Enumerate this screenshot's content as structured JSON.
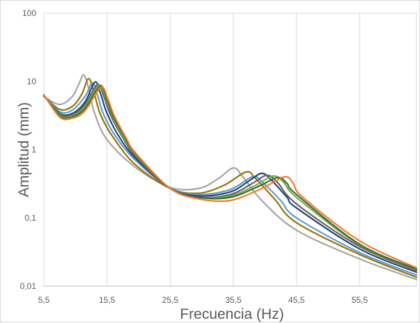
{
  "chart_data": {
    "type": "line",
    "title": "",
    "xlabel": "Frecuencia (Hz)",
    "ylabel": "Amplitud (mm)",
    "xlim": [
      5.5,
      64.5
    ],
    "ylim": [
      0.01,
      100
    ],
    "y_scale": "log",
    "grid": "vertical",
    "legend": "none",
    "x_ticks": [
      5.5,
      15.5,
      25.5,
      35.5,
      45.5,
      55.5
    ],
    "x_tick_labels": [
      "5,5",
      "15,5",
      "25,5",
      "35,5",
      "45,5",
      "55,5"
    ],
    "y_ticks": [
      0.01,
      0.1,
      1,
      10,
      100
    ],
    "y_tick_labels": [
      "0,01",
      "0,1",
      "1",
      "10",
      "100"
    ],
    "series": [
      {
        "color": "#a5a5a5",
        "values": [
          [
            5.5,
            6.0
          ],
          [
            8.0,
            4.6
          ],
          [
            10.0,
            6.0
          ],
          [
            11.0,
            9.0
          ],
          [
            11.8,
            12.5
          ],
          [
            12.5,
            8.5
          ],
          [
            13.5,
            3.5
          ],
          [
            15.5,
            1.4
          ],
          [
            20.0,
            0.55
          ],
          [
            25.5,
            0.28
          ],
          [
            30.0,
            0.27
          ],
          [
            33.0,
            0.37
          ],
          [
            35.5,
            0.54
          ],
          [
            37.0,
            0.4
          ],
          [
            40.0,
            0.18
          ],
          [
            45.5,
            0.066
          ],
          [
            55.5,
            0.025
          ],
          [
            64.5,
            0.0125
          ]
        ]
      },
      {
        "color": "#997300",
        "values": [
          [
            5.5,
            6.1
          ],
          [
            8.0,
            3.9
          ],
          [
            10.0,
            4.3
          ],
          [
            11.5,
            6.5
          ],
          [
            12.6,
            11.0
          ],
          [
            13.5,
            6.5
          ],
          [
            14.5,
            3.2
          ],
          [
            16.5,
            1.5
          ],
          [
            20.0,
            0.6
          ],
          [
            25.5,
            0.27
          ],
          [
            30.0,
            0.23
          ],
          [
            34.0,
            0.3
          ],
          [
            37.5,
            0.47
          ],
          [
            39.0,
            0.38
          ],
          [
            42.0,
            0.19
          ],
          [
            45.5,
            0.085
          ],
          [
            55.5,
            0.029
          ],
          [
            64.5,
            0.0135
          ]
        ]
      },
      {
        "color": "#5b9bd5",
        "values": [
          [
            5.5,
            6.2
          ],
          [
            8.0,
            3.6
          ],
          [
            10.0,
            3.8
          ],
          [
            12.0,
            6.0
          ],
          [
            13.2,
            9.5
          ],
          [
            14.0,
            6.2
          ],
          [
            15.0,
            3.2
          ],
          [
            17.0,
            1.5
          ],
          [
            20.0,
            0.7
          ],
          [
            25.5,
            0.27
          ],
          [
            30.0,
            0.22
          ],
          [
            35.0,
            0.26
          ],
          [
            38.5,
            0.4
          ],
          [
            40.0,
            0.34
          ],
          [
            43.0,
            0.18
          ],
          [
            45.5,
            0.1
          ],
          [
            55.5,
            0.031
          ],
          [
            64.5,
            0.0145
          ]
        ]
      },
      {
        "color": "#264478",
        "values": [
          [
            5.5,
            6.2
          ],
          [
            8.0,
            3.4
          ],
          [
            10.0,
            3.4
          ],
          [
            12.0,
            5.0
          ],
          [
            13.6,
            9.8
          ],
          [
            14.5,
            6.5
          ],
          [
            15.5,
            3.4
          ],
          [
            17.5,
            1.5
          ],
          [
            20.0,
            0.75
          ],
          [
            25.5,
            0.27
          ],
          [
            30.0,
            0.21
          ],
          [
            35.0,
            0.24
          ],
          [
            38.0,
            0.35
          ],
          [
            40.0,
            0.45
          ],
          [
            41.5,
            0.36
          ],
          [
            44.0,
            0.2
          ],
          [
            45.5,
            0.14
          ],
          [
            55.5,
            0.035
          ],
          [
            64.5,
            0.016
          ]
        ]
      },
      {
        "color": "#636363",
        "values": [
          [
            5.5,
            6.3
          ],
          [
            8.0,
            3.3
          ],
          [
            10.0,
            3.2
          ],
          [
            12.0,
            4.6
          ],
          [
            14.0,
            9.0
          ],
          [
            15.0,
            6.0
          ],
          [
            16.0,
            3.3
          ],
          [
            18.0,
            1.5
          ],
          [
            20.0,
            0.8
          ],
          [
            25.5,
            0.27
          ],
          [
            30.0,
            0.2
          ],
          [
            35.0,
            0.22
          ],
          [
            38.5,
            0.32
          ],
          [
            40.8,
            0.42
          ],
          [
            42.5,
            0.33
          ],
          [
            45.5,
            0.16
          ],
          [
            55.5,
            0.038
          ],
          [
            64.5,
            0.017
          ]
        ]
      },
      {
        "color": "#70ad47",
        "values": [
          [
            5.5,
            6.3
          ],
          [
            8.0,
            3.2
          ],
          [
            10.0,
            3.1
          ],
          [
            12.0,
            4.3
          ],
          [
            14.2,
            8.8
          ],
          [
            15.2,
            6.0
          ],
          [
            16.2,
            3.3
          ],
          [
            18.0,
            1.6
          ],
          [
            20.0,
            0.85
          ],
          [
            25.5,
            0.27
          ],
          [
            30.0,
            0.2
          ],
          [
            35.0,
            0.21
          ],
          [
            39.0,
            0.3
          ],
          [
            41.8,
            0.41
          ],
          [
            43.5,
            0.33
          ],
          [
            45.5,
            0.2
          ],
          [
            55.5,
            0.04
          ],
          [
            64.5,
            0.0175
          ]
        ]
      },
      {
        "color": "#43682b",
        "values": [
          [
            5.5,
            6.3
          ],
          [
            8.0,
            3.1
          ],
          [
            10.0,
            3.0
          ],
          [
            12.0,
            4.0
          ],
          [
            14.4,
            8.5
          ],
          [
            15.4,
            5.8
          ],
          [
            16.4,
            3.2
          ],
          [
            18.2,
            1.6
          ],
          [
            20.0,
            0.88
          ],
          [
            25.5,
            0.27
          ],
          [
            30.0,
            0.2
          ],
          [
            35.0,
            0.2
          ],
          [
            39.5,
            0.29
          ],
          [
            42.5,
            0.39
          ],
          [
            44.0,
            0.32
          ],
          [
            45.5,
            0.22
          ],
          [
            55.5,
            0.041
          ],
          [
            64.5,
            0.0178
          ]
        ]
      },
      {
        "color": "#ed7d31",
        "values": [
          [
            5.5,
            6.4
          ],
          [
            8.0,
            3.0
          ],
          [
            10.0,
            2.9
          ],
          [
            12.0,
            3.7
          ],
          [
            14.5,
            8.2
          ],
          [
            15.6,
            5.6
          ],
          [
            16.6,
            3.2
          ],
          [
            18.5,
            1.5
          ],
          [
            20.0,
            0.9
          ],
          [
            25.5,
            0.27
          ],
          [
            30.0,
            0.19
          ],
          [
            35.0,
            0.18
          ],
          [
            40.0,
            0.27
          ],
          [
            43.6,
            0.4
          ],
          [
            45.0,
            0.32
          ],
          [
            46.5,
            0.2
          ],
          [
            55.5,
            0.046
          ],
          [
            64.5,
            0.0185
          ]
        ]
      }
    ]
  }
}
